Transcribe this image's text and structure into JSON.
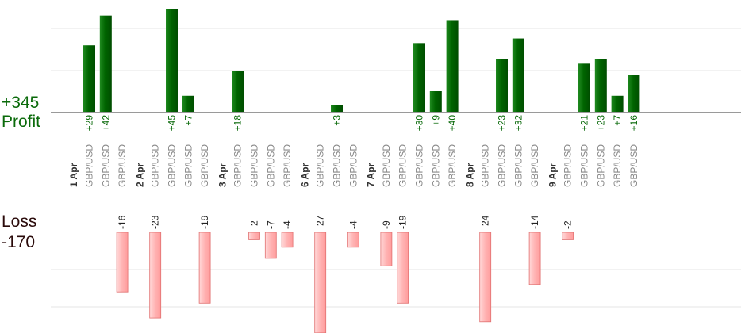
{
  "summary": {
    "profit_total": "+345",
    "profit_label": "Profit",
    "loss_label": "Loss",
    "loss_total": "-170"
  },
  "colors": {
    "profit_bar": "#006400",
    "profit_text": "#0a6a0a",
    "loss_bar": "#ffb3b3",
    "loss_bar_edge": "#e07070",
    "loss_text": "#2a0a0a",
    "pair_text": "#888888",
    "grid": "#e6e6e6"
  },
  "chart_data": {
    "type": "bar",
    "title": "",
    "pair": "GBP/USD",
    "grid": true,
    "days": [
      {
        "label": "1 Apr",
        "trades": [
          29,
          42,
          -16
        ]
      },
      {
        "label": "2 Apr",
        "trades": [
          -23,
          45,
          7,
          -19
        ]
      },
      {
        "label": "3 Apr",
        "trades": [
          18,
          -2,
          -7,
          -4
        ]
      },
      {
        "label": "6 Apr",
        "trades": [
          -27,
          3,
          -4
        ]
      },
      {
        "label": "7 Apr",
        "trades": [
          -9,
          -19,
          30,
          9,
          40
        ]
      },
      {
        "label": "8 Apr",
        "trades": [
          -24,
          23,
          32,
          -14
        ]
      },
      {
        "label": "9 Apr",
        "trades": [
          -2,
          21,
          23,
          7,
          16
        ]
      }
    ]
  }
}
